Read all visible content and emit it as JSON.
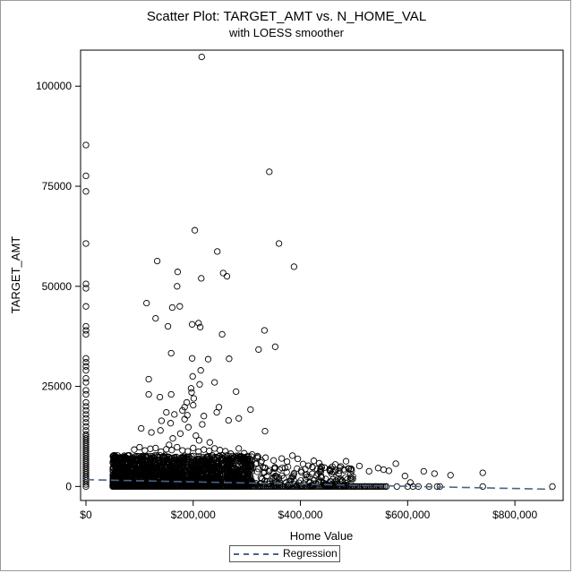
{
  "chart_data": {
    "type": "scatter",
    "title": "Scatter Plot: TARGET_AMT vs. N_HOME_VAL",
    "subtitle": "with LOESS smoother",
    "xlabel": "Home Value",
    "ylabel": "TARGET_AMT",
    "xlim": [
      -10000,
      890000
    ],
    "ylim": [
      -3500,
      109000
    ],
    "x_ticks": [
      {
        "value": 0,
        "label": "$0"
      },
      {
        "value": 200000,
        "label": "$200,000"
      },
      {
        "value": 400000,
        "label": "$400,000"
      },
      {
        "value": 600000,
        "label": "$600,000"
      },
      {
        "value": 800000,
        "label": "$800,000"
      }
    ],
    "y_ticks": [
      {
        "value": 0,
        "label": "0"
      },
      {
        "value": 25000,
        "label": "25000"
      },
      {
        "value": 50000,
        "label": "50000"
      },
      {
        "value": 75000,
        "label": "75000"
      },
      {
        "value": 100000,
        "label": "100000"
      }
    ],
    "grid": false,
    "legend_position": "bottom-center",
    "marker_color": "#000000",
    "regression_color": "#4a6488",
    "series": [
      {
        "name": "",
        "marker": "open-circle",
        "points": [
          [
            0,
            85300
          ],
          [
            0,
            77600
          ],
          [
            0,
            73700
          ],
          [
            0,
            60700
          ],
          [
            0,
            50600
          ],
          [
            0,
            49500
          ],
          [
            0,
            45000
          ],
          [
            0,
            40000
          ],
          [
            0,
            39000
          ],
          [
            0,
            38000
          ],
          [
            0,
            32000
          ],
          [
            0,
            31000
          ],
          [
            0,
            30000
          ],
          [
            0,
            29000
          ],
          [
            0,
            27000
          ],
          [
            0,
            26000
          ],
          [
            0,
            24000
          ],
          [
            0,
            23000
          ],
          [
            0,
            21000
          ],
          [
            0,
            20000
          ],
          [
            0,
            19000
          ],
          [
            0,
            18000
          ],
          [
            0,
            17000
          ],
          [
            0,
            16000
          ],
          [
            0,
            15000
          ],
          [
            0,
            14000
          ],
          [
            0,
            13000
          ],
          [
            0,
            12500
          ],
          [
            0,
            12000
          ],
          [
            0,
            11500
          ],
          [
            0,
            11000
          ],
          [
            0,
            10500
          ],
          [
            0,
            10000
          ],
          [
            0,
            9500
          ],
          [
            0,
            9000
          ],
          [
            0,
            8500
          ],
          [
            0,
            8000
          ],
          [
            0,
            7500
          ],
          [
            0,
            7000
          ],
          [
            0,
            6500
          ],
          [
            0,
            6000
          ],
          [
            0,
            5500
          ],
          [
            0,
            5000
          ],
          [
            0,
            4500
          ],
          [
            0,
            4000
          ],
          [
            0,
            3500
          ],
          [
            0,
            3000
          ],
          [
            0,
            2500
          ],
          [
            0,
            2000
          ],
          [
            0,
            1500
          ],
          [
            0,
            1000
          ],
          [
            0,
            500
          ],
          [
            0,
            0
          ],
          [
            216000,
            107300
          ],
          [
            342000,
            78600
          ],
          [
            203000,
            64000
          ],
          [
            360000,
            60700
          ],
          [
            245000,
            58700
          ],
          [
            133000,
            56300
          ],
          [
            388000,
            54900
          ],
          [
            171000,
            53600
          ],
          [
            256000,
            53300
          ],
          [
            263000,
            52500
          ],
          [
            215000,
            52000
          ],
          [
            170000,
            50000
          ],
          [
            113000,
            45800
          ],
          [
            175000,
            45000
          ],
          [
            161000,
            44700
          ],
          [
            130000,
            42000
          ],
          [
            210000,
            40800
          ],
          [
            198000,
            40500
          ],
          [
            213000,
            39800
          ],
          [
            153000,
            40000
          ],
          [
            333000,
            39000
          ],
          [
            254000,
            38000
          ],
          [
            353000,
            34900
          ],
          [
            322000,
            34200
          ],
          [
            159000,
            33300
          ],
          [
            267000,
            31900
          ],
          [
            228000,
            31800
          ],
          [
            198000,
            32000
          ],
          [
            214000,
            29000
          ],
          [
            117000,
            26800
          ],
          [
            199000,
            27500
          ],
          [
            240000,
            26000
          ],
          [
            212000,
            25500
          ],
          [
            196000,
            24500
          ],
          [
            197000,
            23500
          ],
          [
            117000,
            23000
          ],
          [
            159000,
            23000
          ],
          [
            280000,
            23700
          ],
          [
            138000,
            22300
          ],
          [
            201000,
            22000
          ],
          [
            188000,
            21000
          ],
          [
            184000,
            19800
          ],
          [
            200000,
            20300
          ],
          [
            180000,
            19000
          ],
          [
            150000,
            18500
          ],
          [
            165000,
            18000
          ],
          [
            189000,
            17800
          ],
          [
            220000,
            17600
          ],
          [
            248000,
            19800
          ],
          [
            244000,
            18500
          ],
          [
            285000,
            17000
          ],
          [
            141000,
            16400
          ],
          [
            158000,
            15800
          ],
          [
            184000,
            16800
          ],
          [
            266000,
            16500
          ],
          [
            307000,
            19200
          ],
          [
            334000,
            13800
          ],
          [
            217000,
            15500
          ],
          [
            191000,
            14800
          ],
          [
            103000,
            14500
          ],
          [
            139000,
            14000
          ],
          [
            122000,
            13500
          ],
          [
            176000,
            13200
          ],
          [
            205000,
            12700
          ],
          [
            162000,
            12000
          ],
          [
            211000,
            11500
          ],
          [
            231000,
            11000
          ],
          [
            155000,
            10400
          ],
          [
            90000,
            9200
          ],
          [
            100000,
            9800
          ],
          [
            110000,
            9000
          ],
          [
            120000,
            9400
          ],
          [
            130000,
            9600
          ],
          [
            140000,
            8700
          ],
          [
            150000,
            9300
          ],
          [
            160000,
            9100
          ],
          [
            170000,
            9800
          ],
          [
            180000,
            9000
          ],
          [
            190000,
            8800
          ],
          [
            200000,
            9600
          ],
          [
            210000,
            8700
          ],
          [
            220000,
            9200
          ],
          [
            230000,
            8900
          ],
          [
            240000,
            9500
          ],
          [
            250000,
            9100
          ],
          [
            260000,
            8800
          ],
          [
            270000,
            8200
          ],
          [
            285000,
            9500
          ],
          [
            295000,
            8300
          ],
          [
            310000,
            8000
          ],
          [
            320000,
            7600
          ],
          [
            335000,
            7200
          ],
          [
            350000,
            6500
          ],
          [
            365000,
            7000
          ],
          [
            375000,
            6200
          ],
          [
            385000,
            7700
          ],
          [
            395000,
            6900
          ],
          [
            405000,
            5600
          ],
          [
            415000,
            5200
          ],
          [
            425000,
            6400
          ],
          [
            435000,
            5800
          ],
          [
            445000,
            4700
          ],
          [
            455000,
            4200
          ],
          [
            465000,
            5500
          ],
          [
            475000,
            5000
          ],
          [
            485000,
            6300
          ],
          [
            495000,
            4400
          ],
          [
            510000,
            5100
          ],
          [
            528000,
            3800
          ],
          [
            545000,
            4600
          ],
          [
            555000,
            4200
          ],
          [
            565000,
            3900
          ],
          [
            578000,
            5700
          ],
          [
            595000,
            2600
          ],
          [
            630000,
            3800
          ],
          [
            650000,
            3200
          ],
          [
            680000,
            2800
          ],
          [
            740000,
            3400
          ],
          [
            605000,
            1000
          ],
          [
            440000,
            0
          ],
          [
            460000,
            0
          ],
          [
            480000,
            0
          ],
          [
            500000,
            0
          ],
          [
            520000,
            0
          ],
          [
            540000,
            0
          ],
          [
            560000,
            0
          ],
          [
            580000,
            0
          ],
          [
            600000,
            0
          ],
          [
            610000,
            0
          ],
          [
            620000,
            0
          ],
          [
            640000,
            0
          ],
          [
            655000,
            0
          ],
          [
            660000,
            0
          ],
          [
            740000,
            0
          ],
          [
            870000,
            0
          ]
        ]
      },
      {
        "name": "Regression",
        "type": "line",
        "style": "dashed",
        "points": [
          [
            0,
            1700
          ],
          [
            870000,
            -700
          ]
        ]
      }
    ]
  }
}
